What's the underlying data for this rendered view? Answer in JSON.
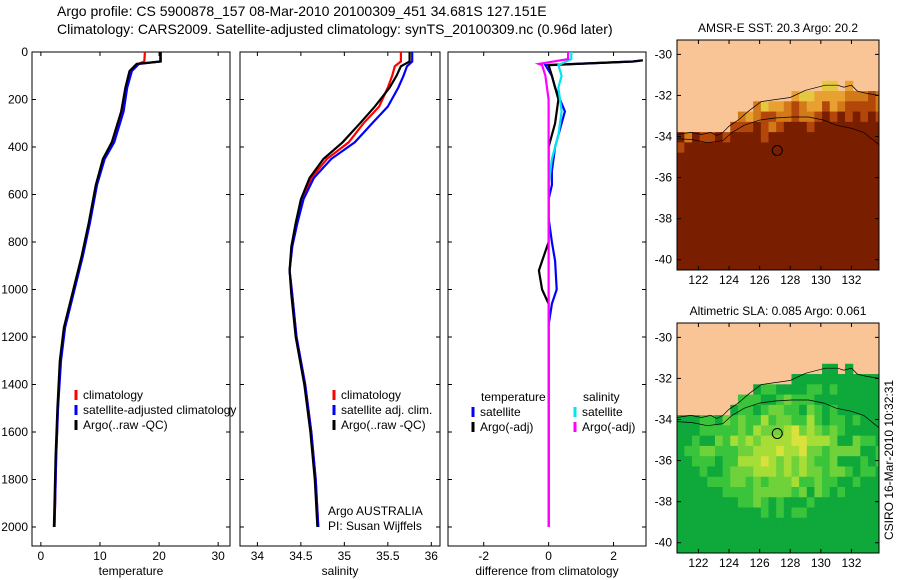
{
  "header": {
    "line1": "Argo profile: CS 5900878_157 08-Mar-2010 20100309_451 34.681S 127.151E",
    "line2": "Climatology: CARS2009. Satellite-adjusted climatology: synTS_20100309.nc (0.96d later)"
  },
  "stamp": "CSIRO 16-Mar-2010 10:32:31",
  "colors": {
    "climatology": "#ff0000",
    "satellite": "#0000ff",
    "argo": "#000000",
    "salinity_satellite": "#00e5ee",
    "salinity_argo": "#ff00ff",
    "land": "#f9c597"
  },
  "chart_data": [
    {
      "type": "line",
      "xlabel": "temperature",
      "ylabel": "",
      "xlim": [
        -1.5,
        32
      ],
      "ylim": [
        0,
        2080
      ],
      "y_reversed": true,
      "xticks": [
        0,
        10,
        20,
        30
      ],
      "yticks": [
        0,
        200,
        400,
        600,
        800,
        1000,
        1200,
        1400,
        1600,
        1800,
        2000
      ],
      "legend": {
        "placement": "lower-center",
        "entries": [
          "climatology",
          "satellite-adjusted climatology",
          "Argo(..raw -QC)"
        ]
      },
      "series": [
        {
          "name": "climatology",
          "color": "#ff0000",
          "points": [
            [
              17.6,
              0
            ],
            [
              17.5,
              40
            ],
            [
              16.4,
              50
            ],
            [
              15.2,
              80
            ],
            [
              14.5,
              150
            ],
            [
              13.8,
              250
            ],
            [
              12,
              380
            ],
            [
              10.6,
              450
            ],
            [
              9.4,
              560
            ],
            [
              8.2,
              720
            ],
            [
              7,
              860
            ],
            [
              6,
              960
            ],
            [
              5,
              1060
            ],
            [
              4,
              1160
            ],
            [
              3.3,
              1300
            ],
            [
              2.9,
              1500
            ],
            [
              2.6,
              1700
            ],
            [
              2.4,
              1900
            ],
            [
              2.3,
              2000
            ]
          ]
        },
        {
          "name": "satellite-adjusted climatology",
          "color": "#0000ff",
          "points": [
            [
              20.3,
              0
            ],
            [
              20.3,
              40
            ],
            [
              16.6,
              50
            ],
            [
              15.4,
              80
            ],
            [
              14.6,
              150
            ],
            [
              14,
              250
            ],
            [
              12.4,
              380
            ],
            [
              10.8,
              450
            ],
            [
              9.5,
              560
            ],
            [
              8.3,
              720
            ],
            [
              7.1,
              860
            ],
            [
              6.1,
              960
            ],
            [
              5.1,
              1060
            ],
            [
              4.1,
              1160
            ],
            [
              3.4,
              1300
            ],
            [
              2.9,
              1500
            ],
            [
              2.6,
              1700
            ],
            [
              2.4,
              1900
            ],
            [
              2.3,
              2000
            ]
          ]
        },
        {
          "name": "Argo(..raw -QC)",
          "color": "#000000",
          "points": [
            [
              20.2,
              0
            ],
            [
              20.2,
              40
            ],
            [
              16.2,
              50
            ],
            [
              15,
              80
            ],
            [
              14.3,
              150
            ],
            [
              13.6,
              250
            ],
            [
              12,
              380
            ],
            [
              10.5,
              450
            ],
            [
              9.3,
              560
            ],
            [
              8.1,
              720
            ],
            [
              6.9,
              860
            ],
            [
              5.9,
              960
            ],
            [
              4.9,
              1060
            ],
            [
              3.9,
              1160
            ],
            [
              3.2,
              1300
            ],
            [
              2.8,
              1500
            ],
            [
              2.5,
              1700
            ],
            [
              2.3,
              1900
            ],
            [
              2.2,
              2000
            ]
          ]
        }
      ]
    },
    {
      "type": "line",
      "xlabel": "salinity",
      "ylabel": "",
      "xlim": [
        33.8,
        36.1
      ],
      "ylim": [
        0,
        2080
      ],
      "y_reversed": true,
      "xticks": [
        34,
        34.5,
        35,
        35.5,
        36
      ],
      "legend": {
        "placement": "lower-center",
        "entries": [
          "climatology",
          "satellite adj. clim.",
          "Argo(..raw -QC)"
        ]
      },
      "annotations": [
        "Argo AUSTRALIA",
        "PI: Susan Wijffels"
      ],
      "series": [
        {
          "name": "climatology",
          "color": "#ff0000",
          "points": [
            [
              35.65,
              0
            ],
            [
              35.65,
              40
            ],
            [
              35.58,
              60
            ],
            [
              35.55,
              100
            ],
            [
              35.5,
              150
            ],
            [
              35.4,
              230
            ],
            [
              35.22,
              300
            ],
            [
              35.05,
              380
            ],
            [
              34.8,
              450
            ],
            [
              34.62,
              530
            ],
            [
              34.52,
              620
            ],
            [
              34.45,
              720
            ],
            [
              34.4,
              820
            ],
            [
              34.37,
              920
            ],
            [
              34.4,
              1020
            ],
            [
              34.45,
              1200
            ],
            [
              34.55,
              1400
            ],
            [
              34.62,
              1600
            ],
            [
              34.67,
              1800
            ],
            [
              34.7,
              2000
            ]
          ]
        },
        {
          "name": "satellite adj. clim.",
          "color": "#0000ff",
          "points": [
            [
              35.78,
              0
            ],
            [
              35.78,
              40
            ],
            [
              35.72,
              60
            ],
            [
              35.68,
              100
            ],
            [
              35.62,
              150
            ],
            [
              35.5,
              230
            ],
            [
              35.32,
              300
            ],
            [
              35.12,
              380
            ],
            [
              34.85,
              450
            ],
            [
              34.65,
              530
            ],
            [
              34.53,
              620
            ],
            [
              34.46,
              720
            ],
            [
              34.4,
              820
            ],
            [
              34.37,
              920
            ],
            [
              34.4,
              1020
            ],
            [
              34.45,
              1200
            ],
            [
              34.55,
              1400
            ],
            [
              34.62,
              1600
            ],
            [
              34.67,
              1800
            ],
            [
              34.7,
              2000
            ]
          ]
        },
        {
          "name": "Argo(..raw -QC)",
          "color": "#000000",
          "points": [
            [
              35.75,
              0
            ],
            [
              35.75,
              40
            ],
            [
              35.65,
              60
            ],
            [
              35.6,
              100
            ],
            [
              35.52,
              150
            ],
            [
              35.35,
              230
            ],
            [
              35.18,
              300
            ],
            [
              34.98,
              380
            ],
            [
              34.76,
              450
            ],
            [
              34.6,
              530
            ],
            [
              34.5,
              620
            ],
            [
              34.44,
              720
            ],
            [
              34.39,
              820
            ],
            [
              34.37,
              920
            ],
            [
              34.39,
              1020
            ],
            [
              34.44,
              1200
            ],
            [
              34.54,
              1400
            ],
            [
              34.61,
              1600
            ],
            [
              34.66,
              1800
            ],
            [
              34.69,
              2000
            ]
          ]
        }
      ]
    },
    {
      "type": "line",
      "xlabel": "difference from climatology",
      "ylabel": "",
      "xlim": [
        -3.1,
        3
      ],
      "ylim": [
        0,
        2080
      ],
      "y_reversed": true,
      "xticks": [
        -2,
        0,
        2
      ],
      "legend": {
        "placement": "lower-center",
        "entries": [
          "temperature",
          "satellite",
          "Argo(-adj)",
          "salinity",
          "satellite",
          "Argo(-adj)"
        ]
      },
      "series": [
        {
          "name": "satellite",
          "color": "#0000ff",
          "points": [
            [
              2.9,
              35
            ],
            [
              2.6,
              40
            ],
            [
              -0.1,
              55
            ],
            [
              0.1,
              100
            ],
            [
              0.2,
              150
            ],
            [
              0.5,
              250
            ],
            [
              0.4,
              300
            ],
            [
              0.2,
              400
            ],
            [
              0.1,
              500
            ],
            [
              0.1,
              560
            ],
            [
              0.0,
              620
            ],
            [
              0.0,
              700
            ],
            [
              0.1,
              800
            ],
            [
              0.2,
              880
            ],
            [
              0.25,
              1000
            ],
            [
              0.1,
              1060
            ],
            [
              0.0,
              1150
            ],
            [
              0.0,
              1300
            ],
            [
              0.0,
              1600
            ],
            [
              0.0,
              2000
            ]
          ]
        },
        {
          "name": "Argo(-adj)",
          "color": "#000000",
          "points": [
            [
              2.9,
              35
            ],
            [
              2.6,
              40
            ],
            [
              0.0,
              55
            ],
            [
              0.1,
              100
            ],
            [
              0.3,
              200
            ],
            [
              0.2,
              300
            ],
            [
              0.0,
              400
            ],
            [
              0.0,
              600
            ],
            [
              0.0,
              800
            ],
            [
              -0.2,
              880
            ],
            [
              -0.3,
              920
            ],
            [
              -0.2,
              1000
            ],
            [
              0.0,
              1060
            ],
            [
              0.0,
              1300
            ],
            [
              0.0,
              1600
            ],
            [
              0.0,
              2000
            ]
          ]
        },
        {
          "name": "satellite",
          "color": "#00e5ee",
          "points": [
            [
              0.7,
              0
            ],
            [
              0.7,
              30
            ],
            [
              0.3,
              55
            ],
            [
              0.4,
              100
            ],
            [
              0.3,
              150
            ],
            [
              0.4,
              250
            ],
            [
              0.3,
              350
            ],
            [
              0.1,
              450
            ],
            [
              0.0,
              560
            ],
            [
              0.0,
              700
            ],
            [
              0.0,
              900
            ],
            [
              0.0,
              1300
            ],
            [
              0.0,
              1600
            ],
            [
              0.0,
              2000
            ]
          ]
        },
        {
          "name": "Argo(-adj)",
          "color": "#ff00ff",
          "points": [
            [
              0.6,
              0
            ],
            [
              0.6,
              30
            ],
            [
              -0.3,
              50
            ],
            [
              -0.2,
              55
            ],
            [
              -0.1,
              100
            ],
            [
              0.0,
              200
            ],
            [
              0.0,
              400
            ],
            [
              0.0,
              600
            ],
            [
              0.0,
              1000
            ],
            [
              0.0,
              2000
            ]
          ]
        }
      ]
    }
  ],
  "map_sst": {
    "title": "AMSR-E SST: 20.3 Argo: 20.2",
    "xlim": [
      120.6,
      133.8
    ],
    "ylim": [
      -40.5,
      -29.3
    ],
    "xticks": [
      122,
      124,
      126,
      128,
      130,
      132
    ],
    "yticks": [
      -30,
      -32,
      -34,
      -36,
      -38,
      -40
    ],
    "marker": {
      "lon": 127.15,
      "lat": -34.68
    },
    "palette": [
      "#7a1e00",
      "#b3470a",
      "#d27a1a",
      "#e8a030",
      "#e6c840",
      "#7ed95c",
      "#1ec24a",
      "#19b08e",
      "#37b7a5"
    ]
  },
  "map_sla": {
    "title": "Altimetric SLA: 0.085 Argo: 0.061",
    "xlim": [
      120.6,
      133.8
    ],
    "ylim": [
      -40.5,
      -29.3
    ],
    "xticks": [
      122,
      124,
      126,
      128,
      130,
      132
    ],
    "yticks": [
      -30,
      -32,
      -34,
      -36,
      -38,
      -40
    ],
    "marker": {
      "lon": 127.15,
      "lat": -34.68
    },
    "palette": [
      "#0fa83a",
      "#39c43b",
      "#70d23a",
      "#a6dd37",
      "#d9e23c",
      "#efe05a"
    ]
  },
  "coastline": [
    [
      120.6,
      -33.9
    ],
    [
      121.5,
      -33.8
    ],
    [
      122.2,
      -33.9
    ],
    [
      122.8,
      -33.8
    ],
    [
      123.2,
      -33.95
    ],
    [
      123.6,
      -33.8
    ],
    [
      124.0,
      -33.5
    ],
    [
      124.6,
      -33.2
    ],
    [
      125.3,
      -32.75
    ],
    [
      126.1,
      -32.3
    ],
    [
      127.0,
      -32.2
    ],
    [
      128.0,
      -32.1
    ],
    [
      129.0,
      -31.75
    ],
    [
      130.3,
      -31.5
    ],
    [
      131.1,
      -31.5
    ],
    [
      131.5,
      -31.6
    ],
    [
      132.0,
      -31.5
    ],
    [
      132.4,
      -31.8
    ],
    [
      133.0,
      -31.9
    ],
    [
      133.8,
      -32.0
    ]
  ],
  "shelf_contour": [
    [
      120.6,
      -34.1
    ],
    [
      121.6,
      -34.15
    ],
    [
      122.6,
      -34.3
    ],
    [
      123.6,
      -34.2
    ],
    [
      124.2,
      -33.8
    ],
    [
      125.0,
      -33.45
    ],
    [
      126.0,
      -33.2
    ],
    [
      127.0,
      -33.1
    ],
    [
      128.1,
      -33.05
    ],
    [
      129.2,
      -33.05
    ],
    [
      130.2,
      -33.2
    ],
    [
      131.0,
      -33.45
    ],
    [
      132.0,
      -33.6
    ],
    [
      132.8,
      -33.8
    ],
    [
      133.8,
      -34.4
    ]
  ]
}
